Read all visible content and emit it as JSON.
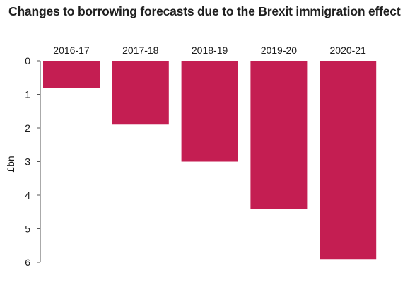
{
  "chart_data": {
    "type": "bar",
    "title": "Changes to borrowing forecasts due to the Brexit immigration effect",
    "xlabel": "",
    "ylabel": "£bn",
    "categories": [
      "2016-17",
      "2017-18",
      "2018-19",
      "2019-20",
      "2020-21"
    ],
    "values": [
      0.8,
      1.9,
      3.0,
      4.4,
      5.9
    ],
    "ylim": [
      0,
      6
    ],
    "yticks": [
      "0",
      "1",
      "2",
      "3",
      "4",
      "5",
      "6"
    ],
    "y_axis_inverted": true,
    "category_axis_position": "top",
    "grid": false,
    "bar_color": "#c41e52"
  }
}
